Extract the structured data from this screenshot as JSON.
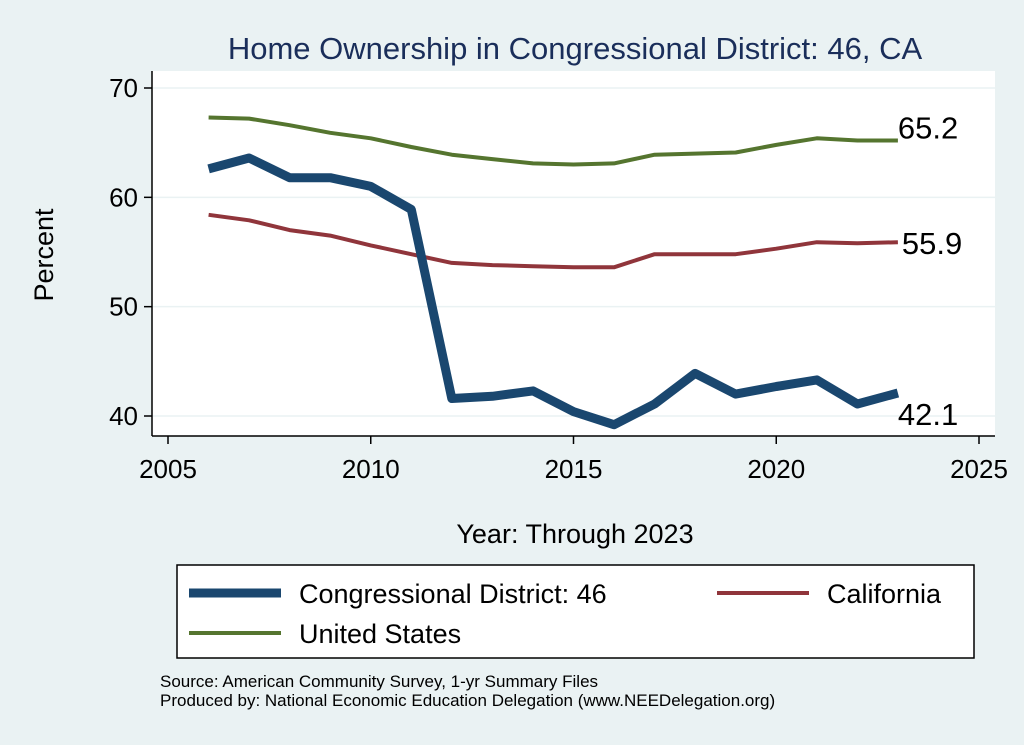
{
  "chart_data": {
    "type": "line",
    "title": "Home Ownership in Congressional District:  46, CA",
    "xlabel": "Year: Through 2023",
    "ylabel": "Percent",
    "xlim": [
      2005,
      2025
    ],
    "ylim": [
      39,
      71
    ],
    "x_ticks": [
      "2005",
      "2010",
      "2015",
      "2020",
      "2025"
    ],
    "y_ticks": [
      "40",
      "50",
      "60",
      "70"
    ],
    "grid": true,
    "x": [
      2006,
      2007,
      2008,
      2009,
      2010,
      2011,
      2012,
      2013,
      2014,
      2015,
      2016,
      2017,
      2018,
      2019,
      2020,
      2021,
      2022,
      2023
    ],
    "series": [
      {
        "name": "Congressional District:  46",
        "color": "#1a476f",
        "values": [
          62.6,
          63.6,
          61.8,
          61.8,
          61.0,
          58.9,
          41.6,
          41.8,
          42.3,
          40.4,
          39.2,
          41.1,
          43.9,
          42.0,
          42.7,
          43.3,
          41.1,
          42.1
        ],
        "end_label": "42.1"
      },
      {
        "name": "California",
        "color": "#90353b",
        "values": [
          58.4,
          57.9,
          57.0,
          56.5,
          55.6,
          54.8,
          54.0,
          53.8,
          53.7,
          53.6,
          53.6,
          54.8,
          54.8,
          54.8,
          55.3,
          55.9,
          55.8,
          55.9
        ],
        "end_label": "55.9"
      },
      {
        "name": "United States",
        "color": "#55752f",
        "values": [
          67.3,
          67.2,
          66.6,
          65.9,
          65.4,
          64.6,
          63.9,
          63.5,
          63.1,
          63.0,
          63.1,
          63.9,
          64.0,
          64.1,
          64.8,
          65.4,
          65.2,
          65.2
        ],
        "end_label": "65.2"
      }
    ],
    "legend": {
      "placement": "bottom",
      "entries": [
        "Congressional District:  46",
        "California",
        "United States"
      ]
    }
  },
  "footer": {
    "source": "Source: American Community Survey, 1-yr Summary Files",
    "produced_by": "Produced by: National Economic Education Delegation (www.NEEDelegation.org)"
  }
}
